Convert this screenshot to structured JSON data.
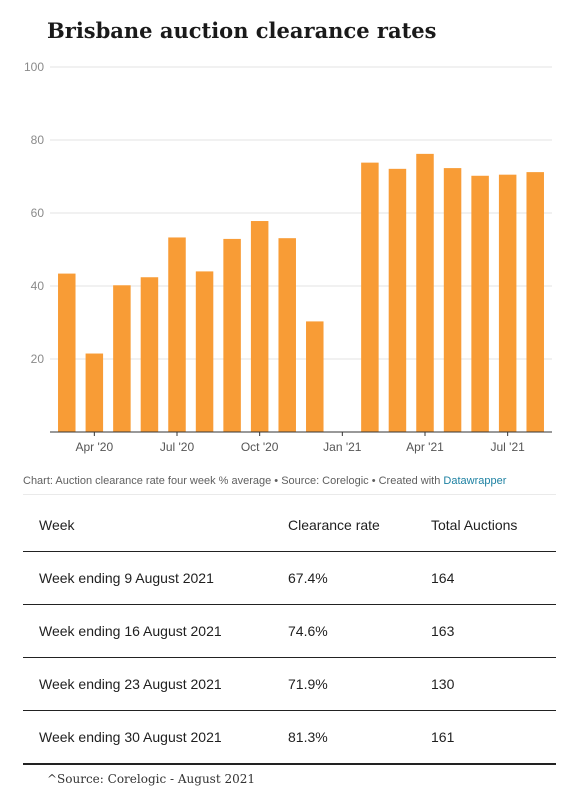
{
  "title": "Brisbane auction clearance rates",
  "chart_data": {
    "type": "bar",
    "title": "Brisbane auction clearance rates",
    "xlabel": "",
    "ylabel": "",
    "ylim": [
      0,
      100
    ],
    "yticks": [
      20,
      40,
      60,
      80,
      100
    ],
    "xtick_labels": [
      "Apr '20",
      "Jul '20",
      "Oct '20",
      "Jan '21",
      "Apr '21",
      "Jul '21"
    ],
    "bar_color": "#f89c36",
    "grid": true,
    "values": [
      43.4,
      21.5,
      40.2,
      42.4,
      53.3,
      44.0,
      52.9,
      57.8,
      53.1,
      30.3,
      null,
      73.8,
      72.1,
      76.2,
      72.3,
      70.2,
      70.5,
      71.2
    ]
  },
  "notes": {
    "prefix": "Chart: Auction clearance rate four week % average • Source: Corelogic • Created with ",
    "link": "Datawrapper"
  },
  "table": {
    "headers": [
      "Week",
      "Clearance rate",
      "Total Auctions"
    ],
    "rows": [
      [
        "Week ending 9 August 2021",
        "67.4%",
        "164"
      ],
      [
        "Week ending 16 August 2021",
        "74.6%",
        "163"
      ],
      [
        "Week ending 23 August 2021",
        "71.9%",
        "130"
      ],
      [
        "Week ending 30 August 2021",
        "81.3%",
        "161"
      ]
    ]
  },
  "source": "^Source: Corelogic - August 2021"
}
